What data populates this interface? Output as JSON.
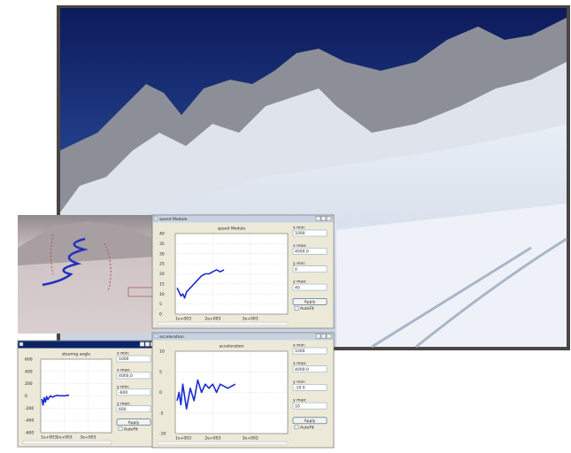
{
  "windows": [
    {
      "window_title": "speed Module",
      "plot_title": "speed Module",
      "xlim": [
        1000,
        4000
      ],
      "ylim": [
        0,
        40
      ],
      "xticks": [
        {
          "value": 1000,
          "label": "1e+003"
        },
        {
          "value": 2000,
          "label": "2e+003"
        },
        {
          "value": 3000,
          "label": "3e+003"
        }
      ],
      "yticks": [
        0,
        5,
        10,
        15,
        20,
        25,
        30,
        35,
        40
      ],
      "curve": {
        "color": "#1a2bd0",
        "x": [
          1050,
          1100,
          1150,
          1200,
          1250,
          1300,
          1400,
          1500,
          1600,
          1700,
          1800,
          1900,
          2000,
          2100,
          2200,
          2300
        ],
        "y": [
          13,
          11,
          9,
          10,
          8,
          11,
          13,
          15,
          17,
          19,
          20,
          20,
          21,
          22,
          21,
          22
        ]
      },
      "fields": [
        {
          "label": "x min:",
          "value": "1000"
        },
        {
          "label": "x max:",
          "value": "4000.0"
        },
        {
          "label": "y min:",
          "value": "0"
        },
        {
          "label": "y max:",
          "value": "40"
        }
      ],
      "button": "Apply",
      "checkbox": "AutoFit"
    },
    {
      "window_title": "steering angle",
      "plot_title": "steering angle",
      "xlim": [
        1000,
        4000
      ],
      "ylim": [
        -600,
        600
      ],
      "xticks": [
        {
          "value": 1000,
          "label": "1e+003"
        },
        {
          "value": 2000,
          "label": "2e+003"
        },
        {
          "value": 3000,
          "label": "3e+003"
        }
      ],
      "yticks": [
        -600,
        -400,
        -200,
        0,
        200,
        400,
        600
      ],
      "curve": {
        "color": "#1a2bd0",
        "x": [
          1050,
          1100,
          1150,
          1200,
          1250,
          1300,
          1400,
          1500,
          1600,
          1700,
          1800,
          1900,
          2000,
          2100,
          2200
        ],
        "y": [
          -50,
          -150,
          -30,
          -100,
          -10,
          -60,
          0,
          -20,
          0,
          10,
          0,
          5,
          0,
          10,
          10
        ]
      },
      "fields": [
        {
          "label": "x min:",
          "value": "1000"
        },
        {
          "label": "x max:",
          "value": "4000.0"
        },
        {
          "label": "y min:",
          "value": "-600"
        },
        {
          "label": "y max:",
          "value": "600"
        }
      ],
      "button": "Apply",
      "checkbox": "AutoFit"
    },
    {
      "window_title": "acceleration",
      "plot_title": "acceleration",
      "xlim": [
        1000,
        4000
      ],
      "ylim": [
        -10,
        10
      ],
      "xticks": [
        {
          "value": 1000,
          "label": "1e+003"
        },
        {
          "value": 2000,
          "label": "2e+003"
        },
        {
          "value": 3000,
          "label": "3e+003"
        }
      ],
      "yticks": [
        -10,
        -5,
        0,
        5,
        10
      ],
      "curve": {
        "color": "#1a2bd0",
        "x": [
          1050,
          1100,
          1150,
          1200,
          1300,
          1400,
          1500,
          1600,
          1700,
          1800,
          1900,
          2000,
          2100,
          2200,
          2400,
          2600
        ],
        "y": [
          -2,
          0,
          -3,
          2,
          -4,
          1,
          -2,
          3,
          0,
          2,
          1,
          2,
          0,
          2,
          1,
          2
        ]
      },
      "fields": [
        {
          "label": "x min:",
          "value": "1000"
        },
        {
          "label": "x max:",
          "value": "4000.0"
        },
        {
          "label": "y min:",
          "value": "-10.0"
        },
        {
          "label": "y max:",
          "value": "10"
        }
      ],
      "button": "Apply",
      "checkbox": "AutoFit"
    }
  ]
}
